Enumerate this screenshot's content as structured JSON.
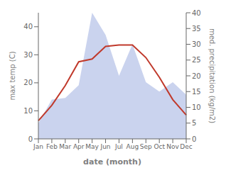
{
  "chart_data": {
    "type": "line",
    "xlabel": "date (month)",
    "ylabel": "max temp (C)",
    "y2label": "med. precipitation (kg/m2)",
    "categories": [
      "Jan",
      "Feb",
      "Mar",
      "Apr",
      "May",
      "Jun",
      "Jul",
      "Aug",
      "Sep",
      "Oct",
      "Nov",
      "Dec"
    ],
    "series": [
      {
        "type": "area",
        "axis": "y2",
        "color": "#b8c4e8",
        "values": [
          5.0,
          12.5,
          13.0,
          17.0,
          40.0,
          33.0,
          20.0,
          30.0,
          18.0,
          15.0,
          18.0,
          14.0
        ]
      },
      {
        "type": "line",
        "color": "#c0392b",
        "values": [
          6.5,
          12.0,
          19.0,
          27.5,
          28.5,
          33.0,
          33.5,
          33.5,
          29.0,
          22.0,
          14.0,
          8.5
        ]
      }
    ],
    "ylim": [
      0,
      45
    ],
    "yticks": [
      0,
      10,
      20,
      30,
      40
    ],
    "y2lim": [
      0,
      40
    ],
    "y2ticks": [
      0,
      5,
      10,
      15,
      20,
      25,
      30,
      35,
      40
    ]
  }
}
